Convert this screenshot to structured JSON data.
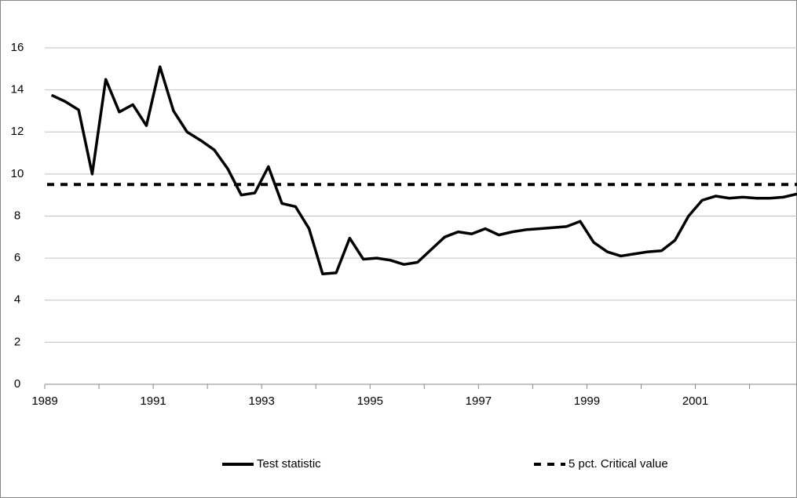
{
  "chart_data": {
    "type": "line",
    "x": [
      1989.125,
      1989.375,
      1989.625,
      1989.875,
      1990.125,
      1990.375,
      1990.625,
      1990.875,
      1991.125,
      1991.375,
      1991.625,
      1991.875,
      1992.125,
      1992.375,
      1992.625,
      1992.875,
      1993.125,
      1993.375,
      1993.625,
      1993.875,
      1994.125,
      1994.375,
      1994.625,
      1994.875,
      1995.125,
      1995.375,
      1995.625,
      1995.875,
      1996.125,
      1996.375,
      1996.625,
      1996.875,
      1997.125,
      1997.375,
      1997.625,
      1997.875,
      1998.125,
      1998.375,
      1998.625,
      1998.875,
      1999.125,
      1999.375,
      1999.625,
      1999.875,
      2000.125,
      2000.375,
      2000.625,
      2000.875,
      2001.125,
      2001.375,
      2001.625,
      2001.875,
      2002.125,
      2002.375,
      2002.625,
      2002.875
    ],
    "series": [
      {
        "name": "Test statistic",
        "color": "#000000",
        "values": [
          13.75,
          13.45,
          13.05,
          10.0,
          14.5,
          12.95,
          13.3,
          12.3,
          15.1,
          13.0,
          12.0,
          11.6,
          11.15,
          10.25,
          9.0,
          9.1,
          10.35,
          8.6,
          8.45,
          7.4,
          5.25,
          5.3,
          6.95,
          5.95,
          6.0,
          5.9,
          5.7,
          5.8,
          6.4,
          7.0,
          7.25,
          7.15,
          7.4,
          7.1,
          7.25,
          7.35,
          7.4,
          7.45,
          7.5,
          7.75,
          6.75,
          6.3,
          6.1,
          6.2,
          6.3,
          6.35,
          6.85,
          8.0,
          8.75,
          8.95,
          8.85,
          8.9,
          8.85,
          8.85,
          8.9,
          9.05
        ]
      },
      {
        "name": "5 pct. Critical value",
        "color": "#000000",
        "value": 9.5,
        "dashed": true
      }
    ],
    "xlim": [
      1989,
      2002.875
    ],
    "xticks": [
      1989,
      1991,
      1993,
      1995,
      1997,
      1999,
      2001
    ],
    "xminor": [
      1990,
      1992,
      1994,
      1996,
      1998,
      2000,
      2002
    ],
    "ylim": [
      0,
      16
    ],
    "yticks": [
      0,
      2,
      4,
      6,
      8,
      10,
      12,
      14,
      16
    ],
    "grid": true,
    "legend": "bottom"
  }
}
